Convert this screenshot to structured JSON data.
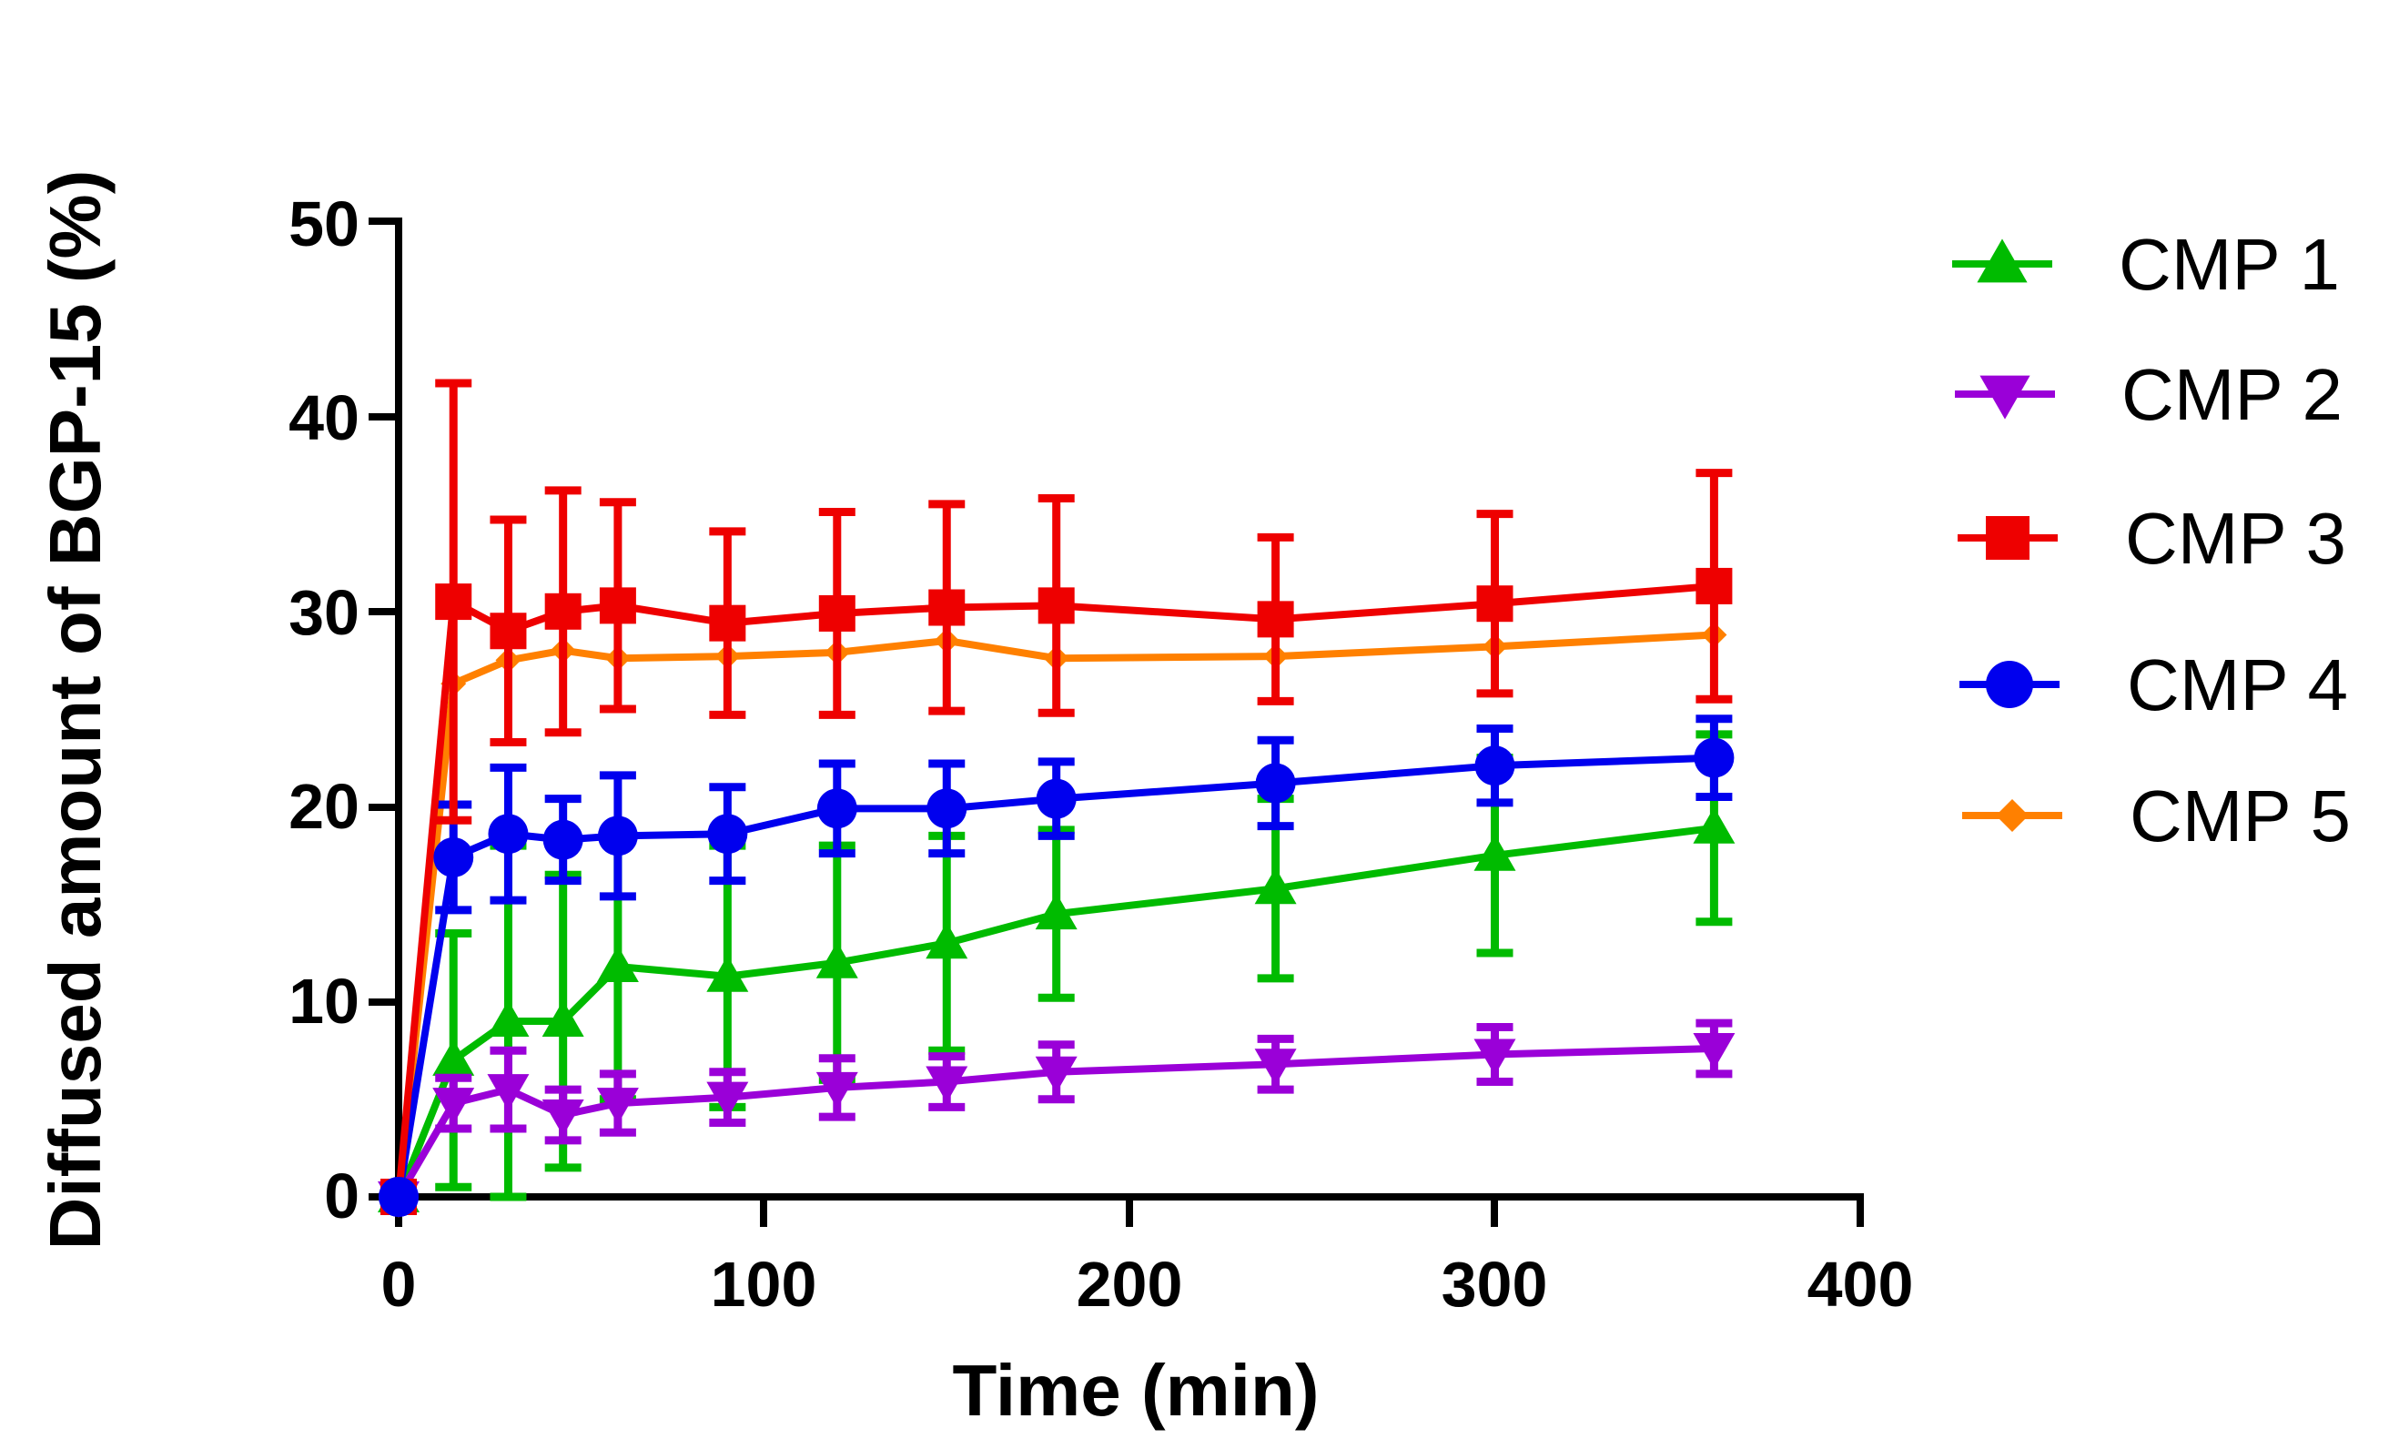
{
  "chart_data": {
    "type": "line",
    "title": "",
    "xlabel": "Time (min)",
    "ylabel": "Diffused amount of BGP-15 (%)",
    "xlim": [
      0,
      400
    ],
    "ylim": [
      0,
      50
    ],
    "xticks": [
      "0",
      "100",
      "200",
      "300",
      "400"
    ],
    "yticks": [
      "0",
      "10",
      "20",
      "30",
      "40",
      "50"
    ],
    "x": [
      0,
      15,
      30,
      45,
      60,
      90,
      120,
      150,
      180,
      240,
      300,
      360
    ],
    "legend_position": "right",
    "series": [
      {
        "name": "CMP 1",
        "color": "#00bb00",
        "marker": "triangle-up",
        "values": [
          0,
          7.0,
          9.0,
          9.0,
          11.8,
          11.3,
          12.0,
          13.0,
          14.5,
          15.8,
          17.5,
          18.9
        ],
        "errors": [
          0,
          6.5,
          9.0,
          7.5,
          6.8,
          6.7,
          6.0,
          5.5,
          4.3,
          4.6,
          5.0,
          4.8
        ]
      },
      {
        "name": "CMP 2",
        "color": "#9a00d8",
        "marker": "triangle-down",
        "values": [
          0,
          4.8,
          5.5,
          4.2,
          4.8,
          5.1,
          5.6,
          5.9,
          6.4,
          6.8,
          7.3,
          7.6
        ],
        "errors": [
          0,
          1.3,
          2.0,
          1.3,
          1.5,
          1.3,
          1.5,
          1.3,
          1.4,
          1.3,
          1.4,
          1.3
        ]
      },
      {
        "name": "CMP 3",
        "color": "#ee0000",
        "marker": "square",
        "values": [
          0,
          30.5,
          29.0,
          30.0,
          30.3,
          29.4,
          29.9,
          30.2,
          30.3,
          29.6,
          30.4,
          31.3
        ],
        "errors": [
          0,
          11.2,
          5.7,
          6.2,
          5.3,
          4.7,
          5.2,
          5.3,
          5.5,
          4.2,
          4.6,
          5.8
        ]
      },
      {
        "name": "CMP 4",
        "color": "#0000ee",
        "marker": "circle",
        "values": [
          0,
          17.4,
          18.6,
          18.3,
          18.5,
          18.6,
          19.9,
          19.9,
          20.4,
          21.2,
          22.1,
          22.5
        ],
        "errors": [
          0,
          2.7,
          3.4,
          2.1,
          3.1,
          2.4,
          2.3,
          2.3,
          1.9,
          2.2,
          1.9,
          2.0
        ]
      },
      {
        "name": "CMP 5",
        "color": "#ff8000",
        "marker": "diamond",
        "values": [
          0,
          26.3,
          27.5,
          28.0,
          27.6,
          27.7,
          27.9,
          28.5,
          27.6,
          27.7,
          28.2,
          28.8
        ],
        "errors": [
          0,
          0,
          0,
          0,
          0,
          0,
          0,
          0,
          0,
          0,
          0,
          0
        ]
      }
    ]
  }
}
